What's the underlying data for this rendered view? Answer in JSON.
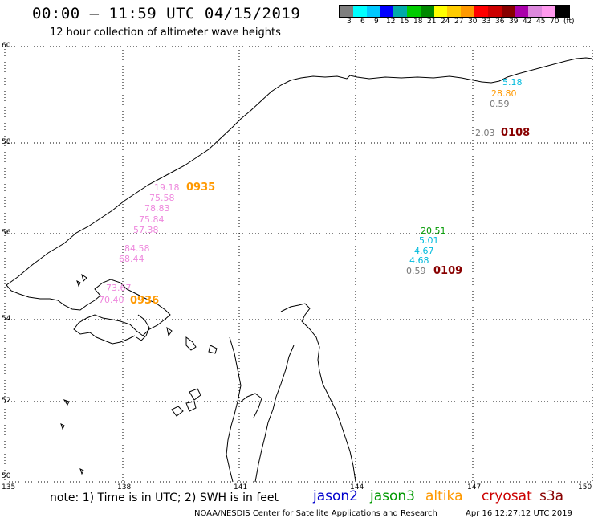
{
  "header": {
    "title": "00:00 – 11:59 UTC 04/15/2019",
    "subtitle": "12 hour collection of altimeter wave heights"
  },
  "color_scale": {
    "colors": [
      "#7f7f7f",
      "#00ffff",
      "#00c8ff",
      "#0000ff",
      "#00aaaa",
      "#00cc00",
      "#008800",
      "#ffff00",
      "#ffcc00",
      "#ff9900",
      "#ff0000",
      "#cc0000",
      "#880000",
      "#aa00aa",
      "#dd88dd",
      "#ff99ee",
      "#000000"
    ],
    "labels": [
      "3",
      "6",
      "9",
      "12",
      "15",
      "18",
      "21",
      "24",
      "27",
      "30",
      "33",
      "36",
      "39",
      "42",
      "45",
      "70",
      "(ft)"
    ]
  },
  "axes": {
    "lat_labels": [
      "60",
      "58",
      "56",
      "54",
      "52",
      "50"
    ],
    "lon_labels": [
      "135",
      "138",
      "141",
      "144",
      "147",
      "150"
    ]
  },
  "footer": {
    "note": "note:  1) Time is in UTC;  2) SWH is in feet",
    "satellites": [
      {
        "name": "jason2",
        "color": "#0000cc"
      },
      {
        "name": "jason3",
        "color": "#009900"
      },
      {
        "name": "altika",
        "color": "#ff9900"
      },
      {
        "name": "cryosat",
        "color": "#cc0000"
      },
      {
        "name": "s3a",
        "color": "#880000"
      }
    ],
    "credit": "NOAA/NESDIS Center for Satellite Applications and Research",
    "timestamp": "Apr 16 12:27:12 UTC 2019"
  },
  "observations": {
    "wave_heights": [
      {
        "v": "5.18",
        "c": "#00bbdd"
      },
      {
        "v": "28.80",
        "c": "#ff9900"
      },
      {
        "v": "0.59",
        "c": "#777777"
      },
      {
        "v": "2.03",
        "c": "#777777"
      },
      {
        "v": "19.18",
        "c": "#ee88dd"
      },
      {
        "v": "75.58",
        "c": "#ee88dd"
      },
      {
        "v": "78.83",
        "c": "#ee88dd"
      },
      {
        "v": "75.84",
        "c": "#ee88dd"
      },
      {
        "v": "57.38",
        "c": "#ee88dd"
      },
      {
        "v": "84.58",
        "c": "#ee88dd"
      },
      {
        "v": "68.44",
        "c": "#ee88dd"
      },
      {
        "v": "73.67",
        "c": "#ee88dd"
      },
      {
        "v": "70.40",
        "c": "#ee88dd"
      },
      {
        "v": "20.51",
        "c": "#009900"
      },
      {
        "v": "5.01",
        "c": "#00bbdd"
      },
      {
        "v": "4.67",
        "c": "#00bbdd"
      },
      {
        "v": "4.68",
        "c": "#00bbdd"
      },
      {
        "v": "0.59",
        "c": "#777777"
      }
    ],
    "pass_times": [
      {
        "v": "0108",
        "c": "#880000"
      },
      {
        "v": "0935",
        "c": "#ff9900"
      },
      {
        "v": "0936",
        "c": "#ff9900"
      },
      {
        "v": "0109",
        "c": "#880000"
      }
    ]
  }
}
